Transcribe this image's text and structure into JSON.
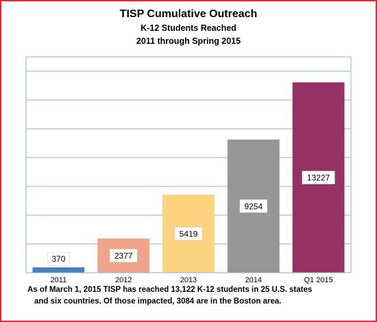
{
  "chart_data": {
    "type": "bar",
    "title": "TISP Cumulative Outreach",
    "subtitle_1": "K-12 Students Reached",
    "subtitle_2": "2011 through Spring 2015",
    "categories": [
      "2011",
      "2012",
      "2013",
      "2014",
      "Q1 2015"
    ],
    "values": [
      370,
      2377,
      5419,
      9254,
      13227
    ],
    "colors": [
      "#4a7ebb",
      "#f0a58a",
      "#fcd27e",
      "#969696",
      "#953163"
    ],
    "ylim": [
      0,
      15000
    ],
    "grid": true,
    "xlabel": "",
    "ylabel": ""
  },
  "caption": {
    "line1": "As of March 1, 2015  TISP has reached  13,122 K-12 students  in  25 U.S.  states",
    "line2": "and six countries.  Of those impacted, 3084 are in the Boston area."
  },
  "colors": {
    "border": "#e8262b",
    "plot_border": "#86b3d1",
    "gridline": "#86b3d1"
  }
}
